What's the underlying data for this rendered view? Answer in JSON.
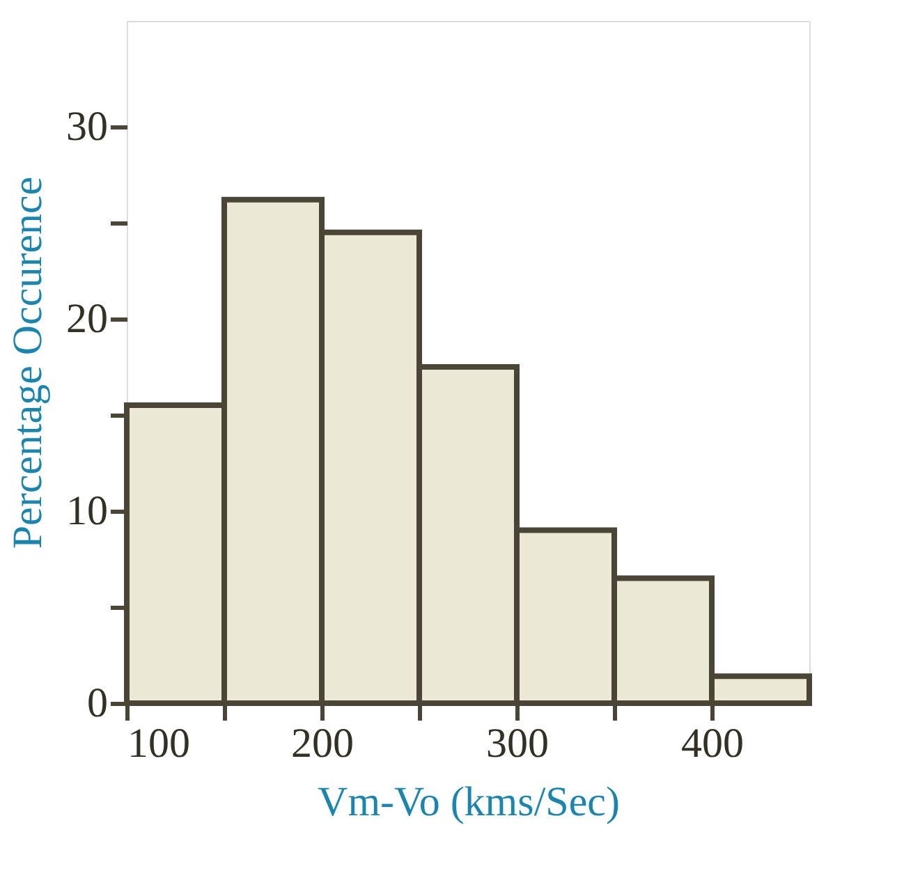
{
  "chart_data": {
    "type": "histogram",
    "xlabel": "Vm-Vo  (kms/Sec)",
    "ylabel": "Percentage Occurence",
    "bins": [
      100,
      150,
      200,
      250,
      300,
      350,
      400,
      450
    ],
    "values": [
      15.5,
      26.2,
      24.5,
      17.5,
      9,
      6.5,
      1.4
    ],
    "color": "#ece8d6",
    "xlim": [
      100,
      450
    ],
    "xticks": [
      100,
      {
        "value": 150,
        "label": null
      },
      200,
      {
        "value": 250,
        "label": null
      },
      300,
      {
        "value": 350,
        "label": null
      },
      400
    ],
    "ylim": [
      0,
      35.5
    ],
    "yticks": [
      0,
      {
        "value": 5,
        "label": null
      },
      10,
      {
        "value": 15,
        "label": null
      },
      20,
      {
        "value": 25,
        "label": null
      },
      30
    ],
    "grid": false
  }
}
